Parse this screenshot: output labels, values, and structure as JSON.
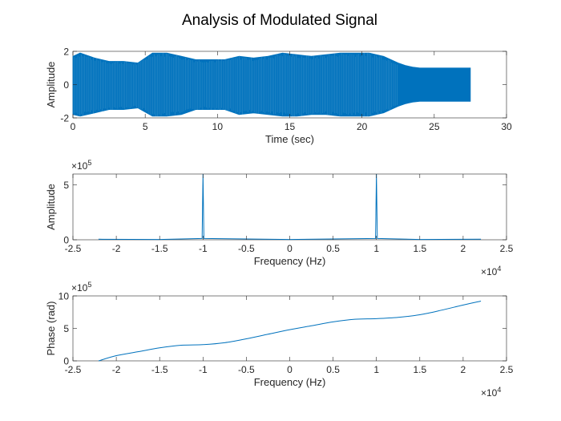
{
  "figure": {
    "title": "Analysis of Modulated Signal",
    "line_color": "#0072BD",
    "axis_color": "#262626"
  },
  "chart_data": [
    {
      "type": "line",
      "name": "time-domain",
      "title": "",
      "xlabel": "Time (sec)",
      "ylabel": "Amplitude",
      "xlim": [
        0,
        30
      ],
      "ylim": [
        -2,
        2
      ],
      "xticks": [
        0,
        5,
        10,
        15,
        20,
        25,
        30
      ],
      "xticklabels": [
        "0",
        "5",
        "10",
        "15",
        "20",
        "25",
        "30"
      ],
      "yticks": [
        -2,
        0,
        2
      ],
      "yticklabels": [
        "-2",
        "0",
        "2"
      ],
      "envelope": {
        "t": [
          0,
          0.5,
          1.5,
          2.5,
          3.5,
          4.5,
          5.5,
          6.5,
          7.5,
          8.5,
          9.5,
          10.5,
          11.5,
          12.5,
          13.5,
          14.5,
          15.5,
          16.5,
          17.5,
          18.5,
          19.5,
          20.5,
          21.5,
          22.5,
          23.0,
          23.5,
          24.0,
          27.5
        ],
        "upper": [
          1.7,
          1.9,
          1.6,
          1.4,
          1.4,
          1.3,
          1.9,
          1.9,
          1.7,
          1.5,
          1.5,
          1.5,
          1.7,
          1.6,
          1.7,
          1.9,
          1.8,
          1.7,
          1.8,
          1.9,
          1.9,
          1.9,
          1.7,
          1.3,
          1.15,
          1.05,
          1.0,
          1.0
        ],
        "lower": [
          -1.8,
          -1.9,
          -1.7,
          -1.5,
          -1.5,
          -1.4,
          -1.9,
          -1.9,
          -1.8,
          -1.5,
          -1.5,
          -1.5,
          -1.8,
          -1.7,
          -1.8,
          -1.9,
          -1.9,
          -1.8,
          -1.8,
          -1.9,
          -1.9,
          -1.9,
          -1.7,
          -1.3,
          -1.15,
          -1.05,
          -1.0,
          -1.0
        ]
      },
      "signal_end": 27.5
    },
    {
      "type": "line",
      "name": "magnitude-spectrum",
      "title": "",
      "xlabel": "Frequency (Hz)",
      "ylabel": "Amplitude",
      "y_exponent": "5",
      "x_exponent": "4",
      "xlim": [
        -2.5,
        2.5
      ],
      "ylim": [
        0,
        6
      ],
      "xticks": [
        -2.5,
        -2,
        -1.5,
        -1,
        -0.5,
        0,
        0.5,
        1,
        1.5,
        2,
        2.5
      ],
      "xticklabels": [
        "-2.5",
        "-2",
        "-1.5",
        "-1",
        "-0.5",
        "0",
        "0.5",
        "1",
        "1.5",
        "2",
        "2.5"
      ],
      "yticks": [
        0,
        5
      ],
      "yticklabels": [
        "0",
        "5"
      ],
      "x": [
        -2.205,
        -1.5,
        -1.01,
        -1.0,
        -0.99,
        0,
        0.99,
        1.0,
        1.01,
        1.5,
        2.205
      ],
      "y": [
        0.05,
        0.03,
        0.12,
        6.0,
        0.12,
        0.03,
        0.12,
        6.0,
        0.12,
        0.03,
        0.05
      ]
    },
    {
      "type": "line",
      "name": "phase-spectrum",
      "title": "",
      "xlabel": "Frequency (Hz)",
      "ylabel": "Phase (rad)",
      "y_exponent": "5",
      "x_exponent": "4",
      "xlim": [
        -2.5,
        2.5
      ],
      "ylim": [
        0,
        10
      ],
      "xticks": [
        -2.5,
        -2,
        -1.5,
        -1,
        -0.5,
        0,
        0.5,
        1,
        1.5,
        2,
        2.5
      ],
      "xticklabels": [
        "-2.5",
        "-2",
        "-1.5",
        "-1",
        "-0.5",
        "0",
        "0.5",
        "1",
        "1.5",
        "2",
        "2.5"
      ],
      "yticks": [
        0,
        5,
        10
      ],
      "yticklabels": [
        "0",
        "5",
        "10"
      ],
      "x": [
        -2.205,
        -2.0,
        -1.75,
        -1.5,
        -1.25,
        -1.0,
        -0.75,
        -0.5,
        -0.25,
        0,
        0.25,
        0.5,
        0.75,
        1.0,
        1.25,
        1.5,
        1.75,
        2.0,
        2.205
      ],
      "y": [
        0.0,
        0.8,
        1.4,
        2.0,
        2.4,
        2.5,
        2.8,
        3.4,
        4.1,
        4.8,
        5.4,
        6.0,
        6.4,
        6.5,
        6.7,
        7.1,
        7.8,
        8.6,
        9.2
      ]
    }
  ]
}
